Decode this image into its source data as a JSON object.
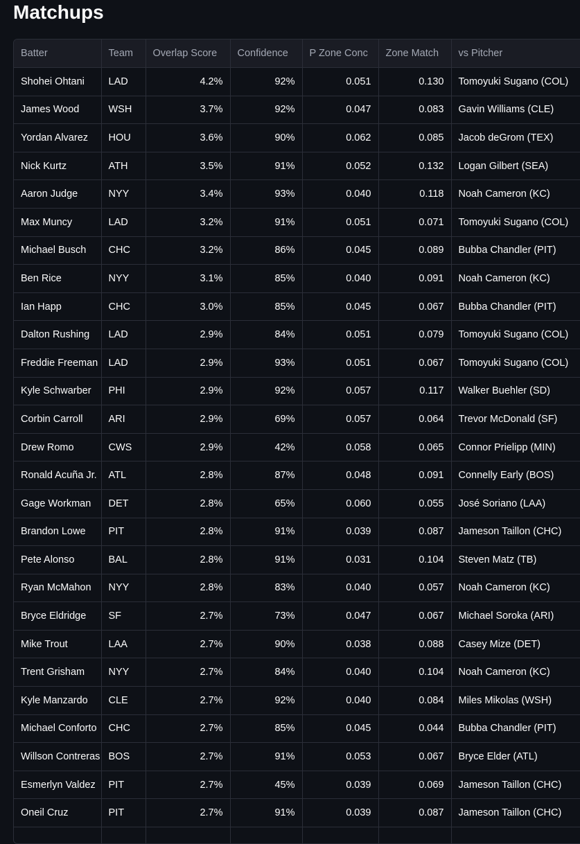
{
  "header": {
    "title": "Matchups"
  },
  "table": {
    "columns": [
      "Batter",
      "Team",
      "Overlap Score",
      "Confidence",
      "P Zone Conc",
      "Zone Match",
      "vs Pitcher"
    ],
    "rows": [
      [
        "Shohei Ohtani",
        "LAD",
        "4.2%",
        "92%",
        "0.051",
        "0.130",
        "Tomoyuki Sugano (COL)"
      ],
      [
        "James Wood",
        "WSH",
        "3.7%",
        "92%",
        "0.047",
        "0.083",
        "Gavin Williams (CLE)"
      ],
      [
        "Yordan Alvarez",
        "HOU",
        "3.6%",
        "90%",
        "0.062",
        "0.085",
        "Jacob deGrom (TEX)"
      ],
      [
        "Nick Kurtz",
        "ATH",
        "3.5%",
        "91%",
        "0.052",
        "0.132",
        "Logan Gilbert (SEA)"
      ],
      [
        "Aaron Judge",
        "NYY",
        "3.4%",
        "93%",
        "0.040",
        "0.118",
        "Noah Cameron (KC)"
      ],
      [
        "Max Muncy",
        "LAD",
        "3.2%",
        "91%",
        "0.051",
        "0.071",
        "Tomoyuki Sugano (COL)"
      ],
      [
        "Michael Busch",
        "CHC",
        "3.2%",
        "86%",
        "0.045",
        "0.089",
        "Bubba Chandler (PIT)"
      ],
      [
        "Ben Rice",
        "NYY",
        "3.1%",
        "85%",
        "0.040",
        "0.091",
        "Noah Cameron (KC)"
      ],
      [
        "Ian Happ",
        "CHC",
        "3.0%",
        "85%",
        "0.045",
        "0.067",
        "Bubba Chandler (PIT)"
      ],
      [
        "Dalton Rushing",
        "LAD",
        "2.9%",
        "84%",
        "0.051",
        "0.079",
        "Tomoyuki Sugano (COL)"
      ],
      [
        "Freddie Freeman",
        "LAD",
        "2.9%",
        "93%",
        "0.051",
        "0.067",
        "Tomoyuki Sugano (COL)"
      ],
      [
        "Kyle Schwarber",
        "PHI",
        "2.9%",
        "92%",
        "0.057",
        "0.117",
        "Walker Buehler (SD)"
      ],
      [
        "Corbin Carroll",
        "ARI",
        "2.9%",
        "69%",
        "0.057",
        "0.064",
        "Trevor McDonald (SF)"
      ],
      [
        "Drew Romo",
        "CWS",
        "2.9%",
        "42%",
        "0.058",
        "0.065",
        "Connor Prielipp (MIN)"
      ],
      [
        "Ronald Acuña Jr.",
        "ATL",
        "2.8%",
        "87%",
        "0.048",
        "0.091",
        "Connelly Early (BOS)"
      ],
      [
        "Gage Workman",
        "DET",
        "2.8%",
        "65%",
        "0.060",
        "0.055",
        "José Soriano (LAA)"
      ],
      [
        "Brandon Lowe",
        "PIT",
        "2.8%",
        "91%",
        "0.039",
        "0.087",
        "Jameson Taillon (CHC)"
      ],
      [
        "Pete Alonso",
        "BAL",
        "2.8%",
        "91%",
        "0.031",
        "0.104",
        "Steven Matz (TB)"
      ],
      [
        "Ryan McMahon",
        "NYY",
        "2.8%",
        "83%",
        "0.040",
        "0.057",
        "Noah Cameron (KC)"
      ],
      [
        "Bryce Eldridge",
        "SF",
        "2.7%",
        "73%",
        "0.047",
        "0.067",
        "Michael Soroka (ARI)"
      ],
      [
        "Mike Trout",
        "LAA",
        "2.7%",
        "90%",
        "0.038",
        "0.088",
        "Casey Mize (DET)"
      ],
      [
        "Trent Grisham",
        "NYY",
        "2.7%",
        "84%",
        "0.040",
        "0.104",
        "Noah Cameron (KC)"
      ],
      [
        "Kyle Manzardo",
        "CLE",
        "2.7%",
        "92%",
        "0.040",
        "0.084",
        "Miles Mikolas (WSH)"
      ],
      [
        "Michael Conforto",
        "CHC",
        "2.7%",
        "85%",
        "0.045",
        "0.044",
        "Bubba Chandler (PIT)"
      ],
      [
        "Willson Contreras",
        "BOS",
        "2.7%",
        "91%",
        "0.053",
        "0.067",
        "Bryce Elder (ATL)"
      ],
      [
        "Esmerlyn Valdez",
        "PIT",
        "2.7%",
        "45%",
        "0.039",
        "0.069",
        "Jameson Taillon (CHC)"
      ],
      [
        "Oneil Cruz",
        "PIT",
        "2.7%",
        "91%",
        "0.039",
        "0.087",
        "Jameson Taillon (CHC)"
      ]
    ]
  }
}
